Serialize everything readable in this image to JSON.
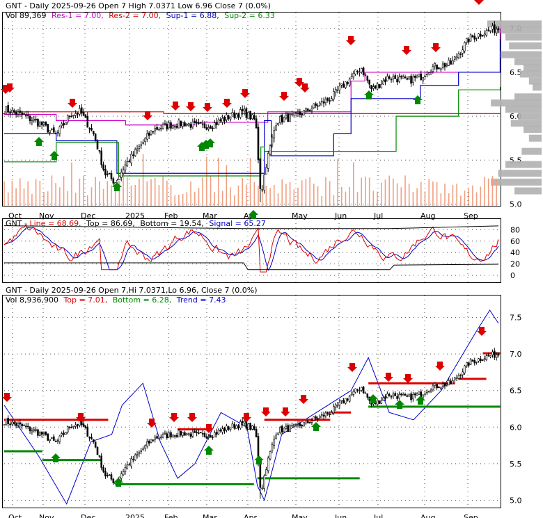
{
  "chart_data": [
    {
      "type": "candlestick",
      "panel": "price-top",
      "header": {
        "line1": [
          {
            "text": "GNT - Daily 2025-09-26 Open 7  High 7.0371  Low 6.96  Close 7 (0.0%)",
            "color": "#000000"
          }
        ],
        "line2": [
          {
            "text": "Vol 89,369",
            "color": "#000000"
          },
          {
            "text": "Res-1 = 7.00,",
            "color": "#cc00cc"
          },
          {
            "text": "Res-2 = 7.00,",
            "color": "#dd0000"
          },
          {
            "text": "Sup-1 = 6.88,",
            "color": "#0000cc"
          },
          {
            "text": "Sup-2 = 6.33",
            "color": "#008800"
          }
        ]
      },
      "y_ticks": [
        "7.0",
        "6.5",
        "6.0",
        "5.5",
        "5.0"
      ],
      "y_tick_values": [
        7.0,
        6.5,
        6.0,
        5.5,
        5.0
      ],
      "ylim": [
        4.98,
        7.18
      ],
      "x_ticks": [
        "Oct",
        "Nov",
        "Dec",
        "2025",
        "Feb",
        "Mar",
        "Apr",
        "May",
        "Jun",
        "Jul",
        "Aug",
        "Sep"
      ],
      "colors": {
        "res1": "#cc00cc",
        "res2": "#dd0000",
        "sup1": "#0000cc",
        "sup2": "#008800",
        "volume": "#f0a080",
        "profile": "#b0b0b0"
      }
    },
    {
      "type": "line",
      "panel": "stochastic",
      "header": [
        {
          "text": "GNT - ",
          "color": "#000000"
        },
        {
          "text": "Line = 68.69,",
          "color": "#dd0000"
        },
        {
          "text": "Top = 86.69,",
          "color": "#000000"
        },
        {
          "text": "Bottom = 19.54,",
          "color": "#000000"
        },
        {
          "text": "Signal = 65.27",
          "color": "#0000cc"
        }
      ],
      "y_ticks": [
        "80",
        "60",
        "40",
        "20",
        "0"
      ],
      "y_tick_values": [
        80,
        60,
        40,
        20,
        0
      ],
      "ylim": [
        0,
        100
      ],
      "series": [
        {
          "name": "Line",
          "color": "#dd0000"
        },
        {
          "name": "Signal",
          "color": "#0000cc"
        },
        {
          "name": "Top",
          "color": "#000000"
        },
        {
          "name": "Bottom",
          "color": "#000000"
        }
      ]
    },
    {
      "type": "candlestick",
      "panel": "price-bottom",
      "header": {
        "line1": [
          {
            "text": "GNT - Daily 2025-09-26 Open 7,Hi 7.0371,Lo 6.96, Close 7 (0.0%)",
            "color": "#000000"
          }
        ],
        "line2": [
          {
            "text": "Vol 8,936,900",
            "color": "#000000"
          },
          {
            "text": "Top = 7.01,",
            "color": "#dd0000"
          },
          {
            "text": "Bottom = 6.28,",
            "color": "#008800"
          },
          {
            "text": "Trend = 7.43",
            "color": "#0000cc"
          }
        ]
      },
      "y_ticks": [
        "7.5",
        "7.0",
        "6.5",
        "6.0",
        "5.5",
        "5.0"
      ],
      "y_tick_values": [
        7.5,
        7.0,
        6.5,
        6.0,
        5.5,
        5.0
      ],
      "ylim": [
        4.9,
        7.8
      ],
      "x_ticks": [
        "Oct",
        "Nov",
        "Dec",
        "2025",
        "Feb",
        "Mar",
        "Apr",
        "May",
        "Jun",
        "Jul",
        "Aug",
        "Sep"
      ],
      "colors": {
        "top": "#dd0000",
        "bottom": "#008800",
        "trend": "#0000cc"
      }
    }
  ]
}
